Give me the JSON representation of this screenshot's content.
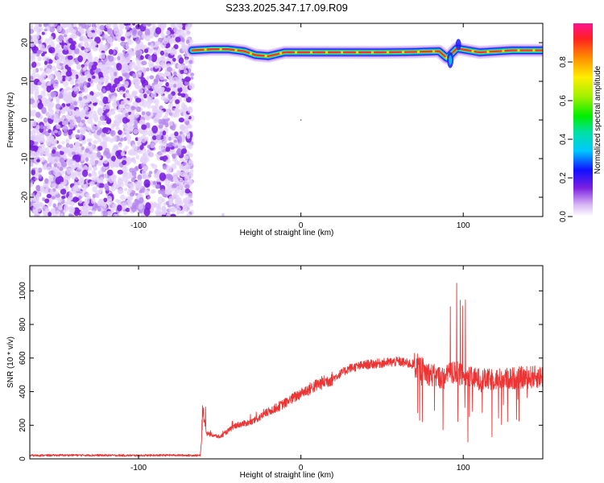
{
  "title": "S233.2025.347.17.09.R09",
  "colors": {
    "snr_line": "#ee3333",
    "spec_purple": "#7a1fe0",
    "spec_light": "#e3d0fa"
  },
  "chart_data": [
    {
      "type": "heatmap",
      "xlabel": "Height of straight line (km)",
      "ylabel": "Frequency (Hz)",
      "xlim": [
        -167,
        149
      ],
      "ylim": [
        -25,
        25
      ],
      "xticks": [
        -100,
        0,
        100
      ],
      "yticks": [
        -20,
        -10,
        0,
        10,
        20
      ],
      "grid": false,
      "noise_region_x": [
        -167,
        -67
      ],
      "signal_band": [
        {
          "x": -67,
          "y": 18.0
        },
        {
          "x": -55,
          "y": 18.3
        },
        {
          "x": -45,
          "y": 18.3
        },
        {
          "x": -35,
          "y": 17.8
        },
        {
          "x": -28,
          "y": 16.8
        },
        {
          "x": -20,
          "y": 16.5
        },
        {
          "x": -10,
          "y": 17.5
        },
        {
          "x": 0,
          "y": 17.5
        },
        {
          "x": 20,
          "y": 17.5
        },
        {
          "x": 50,
          "y": 17.5
        },
        {
          "x": 70,
          "y": 17.6
        },
        {
          "x": 85,
          "y": 17.8
        },
        {
          "x": 90,
          "y": 16.0
        },
        {
          "x": 96,
          "y": 18.5
        },
        {
          "x": 110,
          "y": 17.5
        },
        {
          "x": 130,
          "y": 18.0
        },
        {
          "x": 149,
          "y": 18.0
        }
      ],
      "colorbar": {
        "label": "Normalized spectral amplitude",
        "range": [
          0,
          1
        ],
        "ticks": [
          "0.0",
          "0.2",
          "0.4",
          "0.6",
          "0.8"
        ]
      }
    },
    {
      "type": "line",
      "xlabel": "Height of straight line (km)",
      "ylabel": "SNR (10 * v/v)",
      "xlim": [
        -167,
        149
      ],
      "ylim": [
        0,
        1150
      ],
      "xticks": [
        -100,
        0,
        100
      ],
      "yticks": [
        0,
        200,
        400,
        600,
        800,
        1000
      ],
      "grid": false,
      "series": [
        {
          "x": [
            -167,
            -140,
            -100,
            -80,
            -62,
            -60,
            -58,
            -50,
            -40,
            -30,
            -20,
            -10,
            0,
            10,
            20,
            30,
            40,
            50,
            60,
            70,
            80,
            88,
            95,
            98,
            105,
            115,
            130,
            149
          ],
          "y": [
            20,
            22,
            20,
            22,
            20,
            250,
            150,
            130,
            200,
            220,
            280,
            330,
            390,
            440,
            480,
            540,
            560,
            570,
            580,
            560,
            500,
            480,
            520,
            500,
            480,
            470,
            480,
            490
          ]
        }
      ]
    }
  ]
}
